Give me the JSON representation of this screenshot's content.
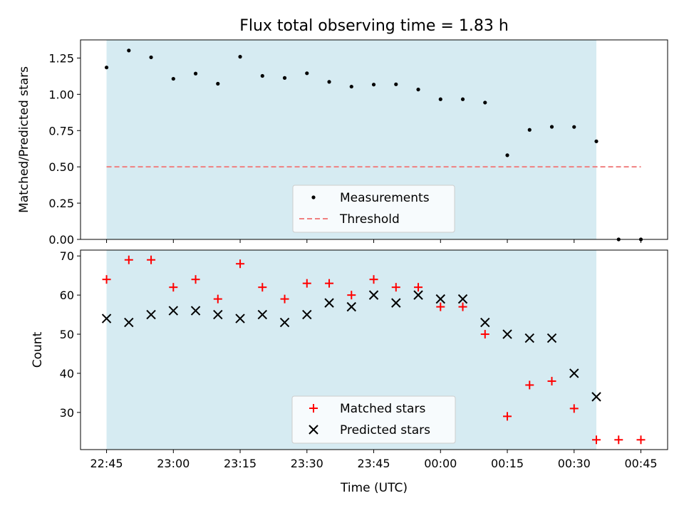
{
  "figure": {
    "title": "Flux total observing time = 1.83 h",
    "xlabel": "Time (UTC)",
    "x_ticks": [
      "22:45",
      "23:00",
      "23:15",
      "23:30",
      "23:45",
      "00:00",
      "00:15",
      "00:30",
      "00:45"
    ],
    "shaded_color": "#add8e6",
    "legend_placement": "lower center"
  },
  "chart_data": [
    {
      "type": "scatter",
      "ylabel": "Matched/Predicted stars",
      "ylim": [
        0,
        1.375
      ],
      "y_ticks": [
        "0.00",
        "0.25",
        "0.50",
        "0.75",
        "1.00",
        "1.25"
      ],
      "y_tick_values": [
        0,
        0.25,
        0.5,
        0.75,
        1.0,
        1.25
      ],
      "x": [
        "22:45",
        "22:50",
        "22:55",
        "23:00",
        "23:05",
        "23:10",
        "23:15",
        "23:20",
        "23:25",
        "23:30",
        "23:35",
        "23:40",
        "23:45",
        "23:50",
        "23:55",
        "00:00",
        "00:05",
        "00:10",
        "00:15",
        "00:20",
        "00:25",
        "00:30",
        "00:35",
        "00:40",
        "00:45"
      ],
      "series": [
        {
          "name": "Measurements",
          "marker": "dot",
          "color": "#000000",
          "values": [
            1.185,
            1.302,
            1.255,
            1.107,
            1.143,
            1.073,
            1.259,
            1.127,
            1.113,
            1.145,
            1.086,
            1.053,
            1.067,
            1.069,
            1.033,
            0.966,
            0.966,
            0.943,
            0.58,
            0.755,
            0.776,
            0.775,
            0.676,
            0.0,
            0.0
          ]
        },
        {
          "name": "Threshold",
          "type": "line",
          "style": "dashed",
          "color": "#f08080",
          "x": [
            "22:45",
            "00:45"
          ],
          "values": [
            0.5,
            0.5
          ]
        }
      ],
      "shaded_span": [
        "22:45",
        "00:35"
      ]
    },
    {
      "type": "scatter",
      "ylabel": "Count",
      "ylim": [
        20.5,
        71.5
      ],
      "y_ticks": [
        "30",
        "40",
        "50",
        "60",
        "70"
      ],
      "y_tick_values": [
        30,
        40,
        50,
        60,
        70
      ],
      "x": [
        "22:45",
        "22:50",
        "22:55",
        "23:00",
        "23:05",
        "23:10",
        "23:15",
        "23:20",
        "23:25",
        "23:30",
        "23:35",
        "23:40",
        "23:45",
        "23:50",
        "23:55",
        "00:00",
        "00:05",
        "00:10",
        "00:15",
        "00:20",
        "00:25",
        "00:30",
        "00:35",
        "00:40",
        "00:45"
      ],
      "series": [
        {
          "name": "Matched stars",
          "marker": "plus",
          "color": "#ff0000",
          "values": [
            64,
            69,
            69,
            62,
            64,
            59,
            68,
            62,
            59,
            63,
            63,
            60,
            64,
            62,
            62,
            57,
            57,
            50,
            29,
            37,
            38,
            31,
            23,
            23,
            23
          ]
        },
        {
          "name": "Predicted stars",
          "marker": "x",
          "color": "#000000",
          "values": [
            54,
            53,
            55,
            56,
            56,
            55,
            54,
            55,
            53,
            55,
            58,
            57,
            60,
            58,
            60,
            59,
            59,
            53,
            50,
            49,
            49,
            40,
            34,
            null,
            null
          ]
        }
      ],
      "shaded_span": [
        "22:45",
        "00:35"
      ]
    }
  ]
}
